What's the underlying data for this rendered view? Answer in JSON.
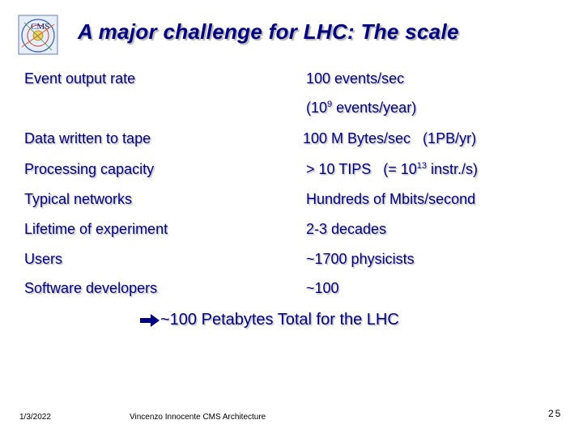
{
  "title": "A major challenge for LHC:  The scale",
  "logo": {
    "text": "CMS",
    "icon": "cms-logo-icon"
  },
  "rows": [
    {
      "label": "Event output rate",
      "value": "100 events/sec"
    },
    {
      "label": "",
      "value_pre": "(10",
      "value_sup": "9",
      "value_post": " events/year)"
    },
    {
      "label": "Data written to tape",
      "value": "100 M Bytes/sec   (1PB/yr)"
    },
    {
      "label": "Processing capacity",
      "value_pre": "> 10 TIPS   (= 10",
      "value_sup": "13",
      "value_post": " instr./s)"
    },
    {
      "label": "Typical networks",
      "value": "Hundreds of Mbits/second"
    },
    {
      "label": "Lifetime of experiment",
      "value": "2-3 decades"
    },
    {
      "label": "Users",
      "value": "~1700 physicists"
    },
    {
      "label": "Software developers",
      "value": "~100"
    }
  ],
  "summary": {
    "arrow_icon": "right-arrow-icon",
    "text": "~100 Petabytes Total for the LHC"
  },
  "footer": {
    "date": "1/3/2022",
    "author": "Vincenzo Innocente  CMS Architecture",
    "page": "25"
  },
  "colors": {
    "text": "#000080",
    "shadow": "#c0c0c0"
  }
}
